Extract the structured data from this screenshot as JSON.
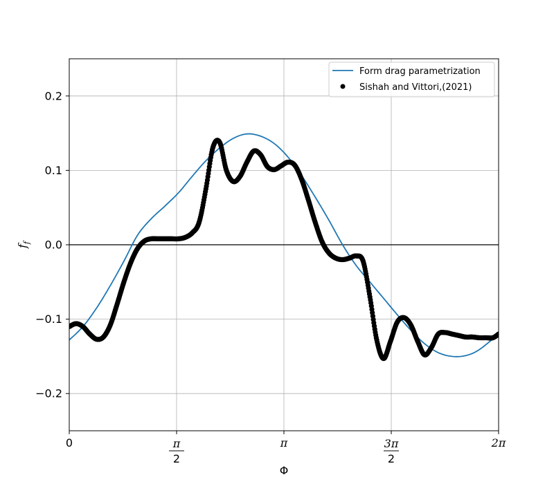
{
  "chart_data": {
    "type": "line",
    "xlabel": "Φ",
    "ylabel_base": "f",
    "ylabel_sub": "f",
    "xlim": [
      0,
      6.2832
    ],
    "ylim": [
      -0.25,
      0.25
    ],
    "grid": true,
    "legend_position": "top-right",
    "x_ticks": [
      {
        "value": 0,
        "num": "0",
        "den": ""
      },
      {
        "value": 1.5708,
        "num": "π",
        "den": "2"
      },
      {
        "value": 3.1416,
        "num": "π",
        "den": ""
      },
      {
        "value": 4.7124,
        "num": "3π",
        "den": "2"
      },
      {
        "value": 6.2832,
        "num": "2π",
        "den": ""
      }
    ],
    "y_ticks": [
      {
        "value": -0.2,
        "label": "−0.2"
      },
      {
        "value": -0.1,
        "label": "−0.1"
      },
      {
        "value": 0.0,
        "label": "0.0"
      },
      {
        "value": 0.1,
        "label": "0.1"
      },
      {
        "value": 0.2,
        "label": "0.2"
      }
    ],
    "reference_line_y": 0,
    "series": [
      {
        "name": "Form drag parametrization",
        "kind": "line",
        "color": "#1f77b4",
        "x": [
          0.0,
          0.2,
          0.4,
          0.6,
          0.8,
          1.0,
          1.2,
          1.4,
          1.6,
          1.8,
          2.0,
          2.2,
          2.4,
          2.6,
          2.8,
          3.0,
          3.2,
          3.4,
          3.6,
          3.8,
          4.0,
          4.2,
          4.4,
          4.6,
          4.8,
          5.0,
          5.2,
          5.4,
          5.6,
          5.8,
          6.0,
          6.2832
        ],
        "y": [
          -0.128,
          -0.11,
          -0.085,
          -0.055,
          -0.022,
          0.013,
          0.035,
          0.052,
          0.07,
          0.092,
          0.113,
          0.13,
          0.143,
          0.149,
          0.146,
          0.136,
          0.118,
          0.093,
          0.064,
          0.033,
          0.0,
          -0.028,
          -0.05,
          -0.072,
          -0.094,
          -0.115,
          -0.133,
          -0.145,
          -0.15,
          -0.149,
          -0.141,
          -0.12
        ]
      },
      {
        "name": "Sishah and Vittori,(2021)",
        "kind": "scatter",
        "color": "#000000",
        "x": [
          0.0,
          0.1,
          0.2,
          0.3,
          0.4,
          0.5,
          0.6,
          0.7,
          0.8,
          0.9,
          1.0,
          1.1,
          1.2,
          1.3,
          1.4,
          1.5,
          1.6,
          1.7,
          1.8,
          1.9,
          2.0,
          2.1,
          2.2,
          2.3,
          2.4,
          2.5,
          2.6,
          2.7,
          2.8,
          2.9,
          3.0,
          3.1,
          3.2,
          3.3,
          3.4,
          3.5,
          3.6,
          3.7,
          3.8,
          3.9,
          4.0,
          4.1,
          4.2,
          4.3,
          4.4,
          4.5,
          4.6,
          4.7,
          4.8,
          4.9,
          5.0,
          5.1,
          5.2,
          5.3,
          5.4,
          5.5,
          5.6,
          5.7,
          5.8,
          5.9,
          6.0,
          6.1,
          6.2,
          6.2832
        ],
        "y": [
          -0.11,
          -0.106,
          -0.11,
          -0.12,
          -0.127,
          -0.124,
          -0.108,
          -0.08,
          -0.05,
          -0.024,
          -0.005,
          0.005,
          0.008,
          0.008,
          0.008,
          0.008,
          0.008,
          0.01,
          0.016,
          0.03,
          0.075,
          0.13,
          0.138,
          0.1,
          0.085,
          0.092,
          0.111,
          0.126,
          0.121,
          0.105,
          0.101,
          0.106,
          0.111,
          0.107,
          0.088,
          0.06,
          0.03,
          0.004,
          -0.011,
          -0.018,
          -0.02,
          -0.018,
          -0.015,
          -0.022,
          -0.07,
          -0.128,
          -0.153,
          -0.13,
          -0.104,
          -0.098,
          -0.108,
          -0.13,
          -0.148,
          -0.138,
          -0.12,
          -0.118,
          -0.12,
          -0.122,
          -0.124,
          -0.124,
          -0.125,
          -0.125,
          -0.125,
          -0.12
        ]
      }
    ]
  }
}
